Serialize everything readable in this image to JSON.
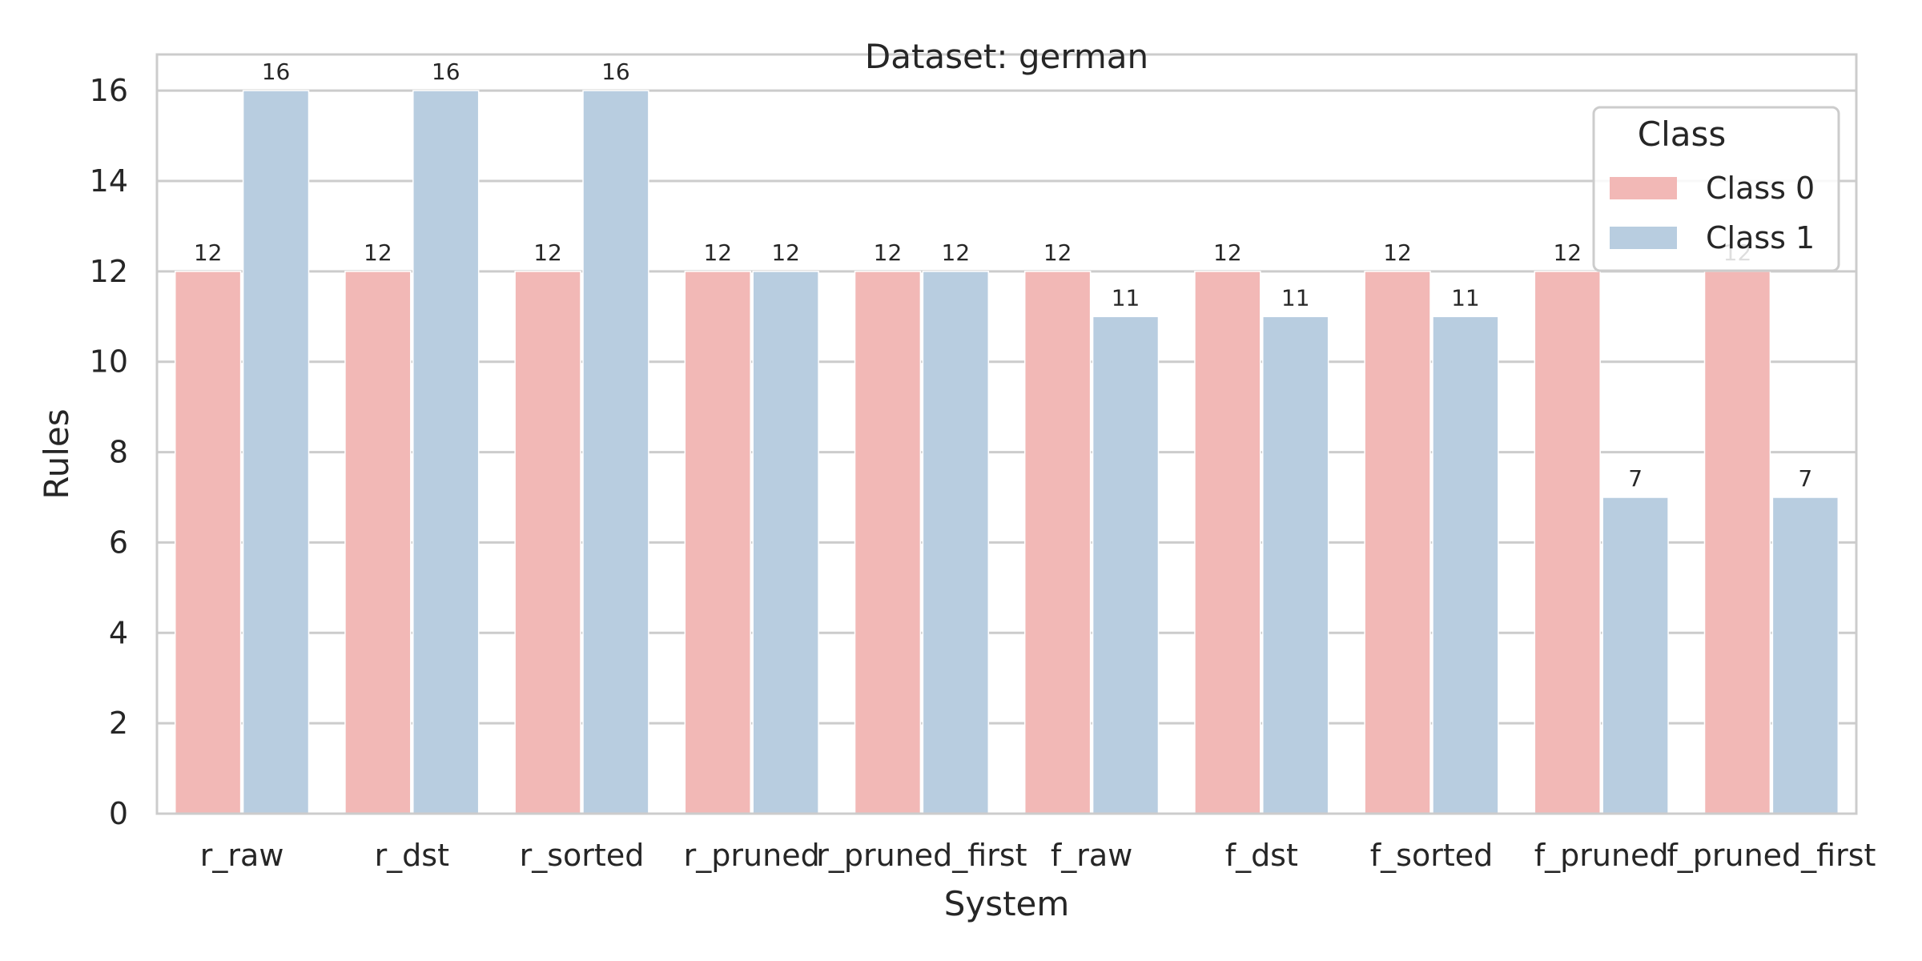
{
  "chart_data": {
    "type": "bar",
    "title": "Dataset: german",
    "xlabel": "System",
    "ylabel": "Rules",
    "ylim": [
      0,
      16.8
    ],
    "yticks": [
      0,
      2,
      4,
      6,
      8,
      10,
      12,
      14,
      16
    ],
    "grid": true,
    "categories": [
      "r_raw",
      "r_dst",
      "r_sorted",
      "r_pruned",
      "r_pruned_first",
      "f_raw",
      "f_dst",
      "f_sorted",
      "f_pruned",
      "f_pruned_first"
    ],
    "series": [
      {
        "name": "Class 0",
        "values": [
          12,
          12,
          12,
          12,
          12,
          12,
          12,
          12,
          12,
          12
        ],
        "color": "#f2b8b6"
      },
      {
        "name": "Class 1",
        "values": [
          16,
          16,
          16,
          12,
          12,
          11,
          11,
          11,
          7,
          7
        ],
        "color": "#b8cde0"
      }
    ],
    "legend": {
      "title": "Class",
      "placement": "top-right"
    },
    "colors": {
      "grid": "#cccccc",
      "frame": "#cccccc",
      "text": "#262626"
    }
  }
}
